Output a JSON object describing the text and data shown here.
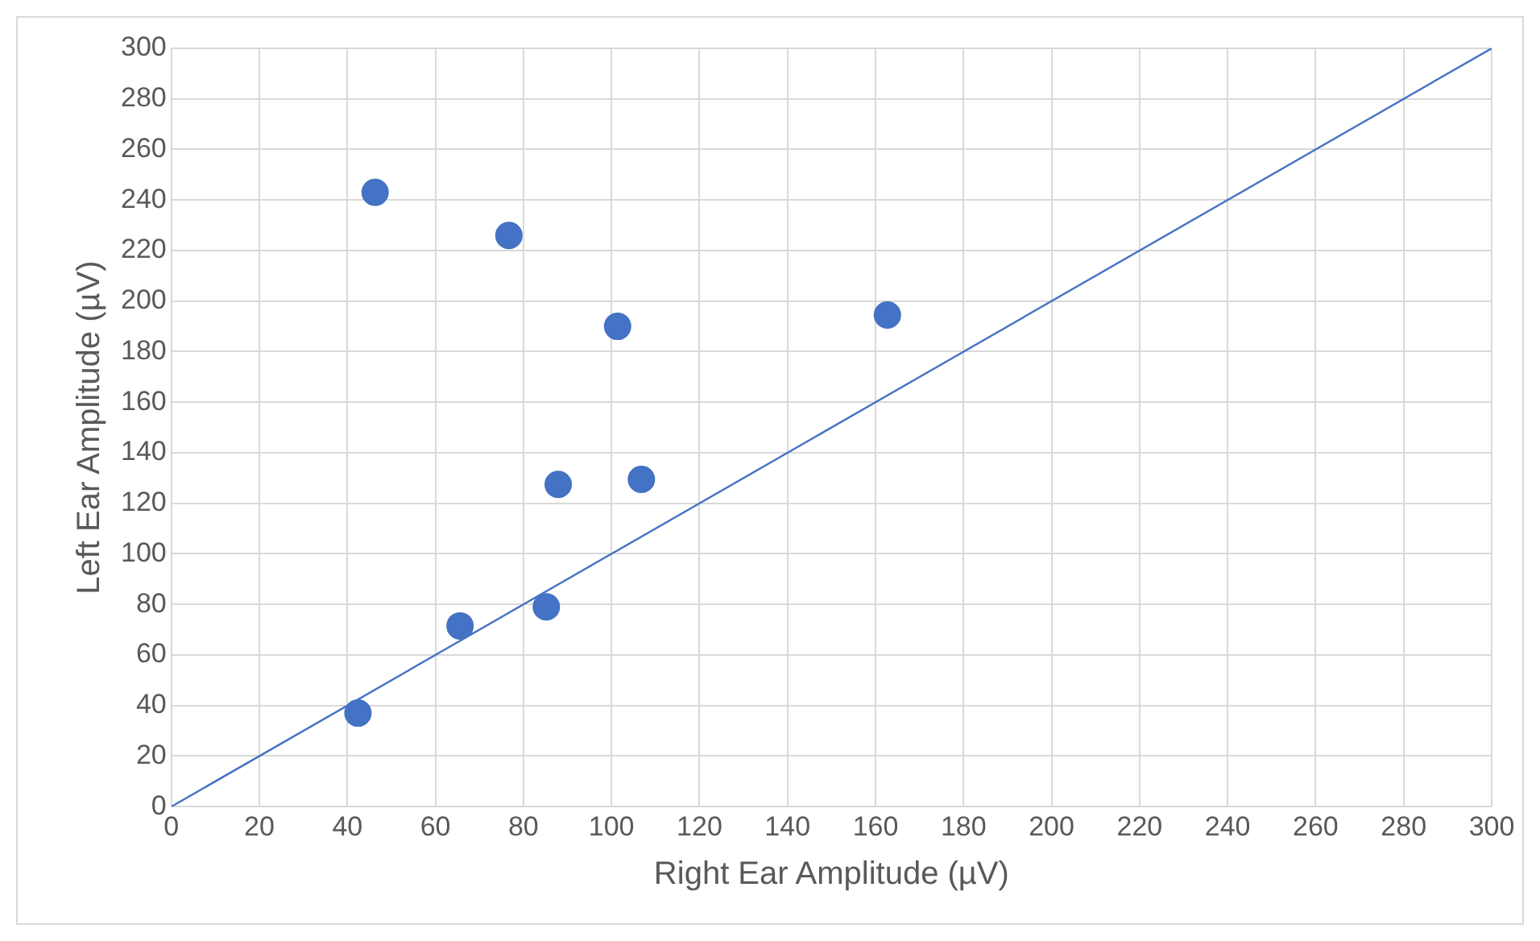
{
  "chart_data": {
    "type": "scatter",
    "xlabel": "Right Ear Amplitude (µV)",
    "ylabel": "Left Ear Amplitude (µV)",
    "xlim": [
      0,
      300
    ],
    "xticks": [
      0,
      20,
      40,
      60,
      80,
      100,
      120,
      140,
      160,
      180,
      200,
      220,
      240,
      260,
      280,
      300
    ],
    "ylim": [
      0,
      300
    ],
    "yticks": [
      0,
      20,
      40,
      60,
      80,
      100,
      120,
      140,
      160,
      180,
      200,
      220,
      240,
      260,
      280,
      300
    ],
    "grid": true,
    "marker": "circle",
    "series": [
      {
        "type": "scatter",
        "color": "#4472c4",
        "x": [
          42.4,
          46.3,
          65.6,
          76.7,
          85.2,
          87.9,
          101.4,
          106.8,
          162.7
        ],
        "values": [
          37,
          243,
          71.5,
          226,
          79,
          127.5,
          190,
          129.5,
          194.5
        ]
      },
      {
        "type": "line",
        "color": "#4472c4",
        "marker": "none",
        "x": [
          0,
          300
        ],
        "values": [
          0,
          300
        ]
      }
    ]
  }
}
